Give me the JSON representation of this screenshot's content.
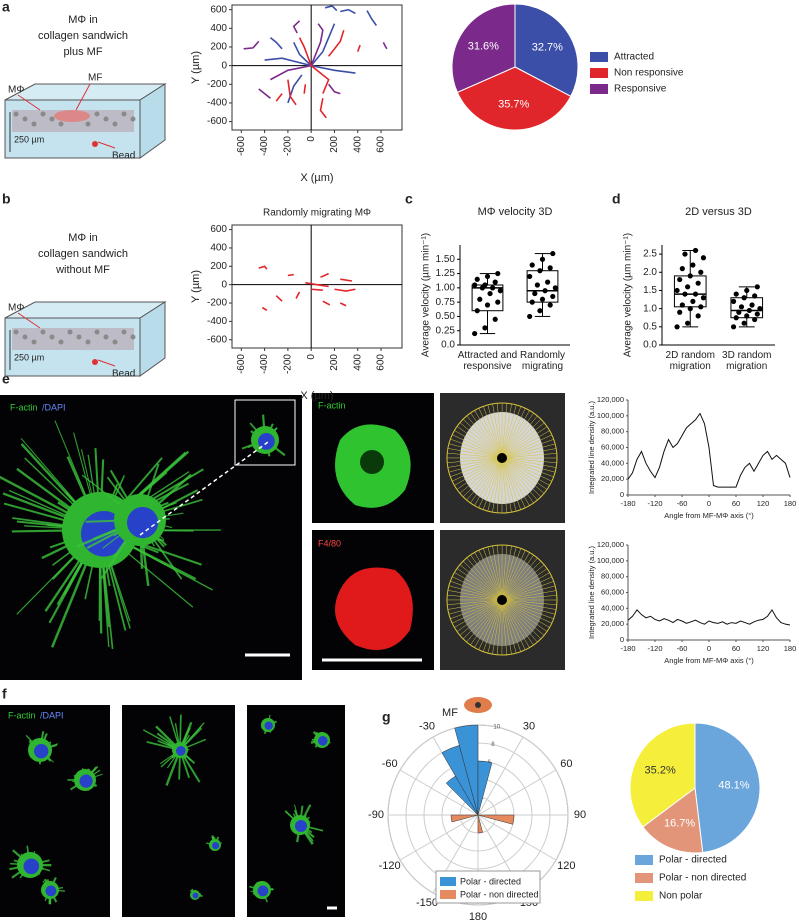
{
  "panel_letters": [
    "a",
    "b",
    "c",
    "d",
    "e",
    "f",
    "g"
  ],
  "schematics": [
    {
      "title": [
        "MΦ in",
        "collagen sandwich",
        "plus MF"
      ],
      "mf": "MF",
      "mphi": "MΦ",
      "depth": "250 µm",
      "bead": "Bead"
    },
    {
      "title": [
        "MΦ in",
        "collagen sandwich",
        "without MF"
      ],
      "mphi": "MΦ",
      "depth": "250 µm",
      "bead": "Bead"
    }
  ],
  "images": {
    "e_main": [
      "F-actin",
      "/DAPI"
    ],
    "e_top": "F-actin",
    "e_bottom": "F4/80",
    "f": [
      "F-actin",
      "/DAPI"
    ]
  },
  "chart_data": [
    {
      "type": "trajectory",
      "x_label": "X (µm)",
      "y_label": "Y (µm)",
      "xlim": [
        -680,
        780
      ],
      "ylim": [
        -690,
        650
      ],
      "xticks": [
        -600,
        -400,
        -200,
        0,
        200,
        400,
        600
      ],
      "yticks": [
        -600,
        -400,
        -200,
        0,
        200,
        400,
        600
      ],
      "tracks": [
        {
          "color": "#3b4fa8",
          "x": [
            0,
            100,
            150,
            200
          ],
          "y": [
            0,
            150,
            300,
            450
          ]
        },
        {
          "color": "#3b4fa8",
          "x": [
            0,
            -100,
            -150
          ],
          "y": [
            0,
            120,
            250
          ]
        },
        {
          "color": "#3b4fa8",
          "x": [
            250,
            320,
            380
          ],
          "y": [
            580,
            600,
            560
          ]
        },
        {
          "color": "#3b4fa8",
          "x": [
            120,
            180,
            220
          ],
          "y": [
            620,
            640,
            590
          ]
        },
        {
          "color": "#3b4fa8",
          "x": [
            480,
            520,
            560
          ],
          "y": [
            590,
            500,
            430
          ]
        },
        {
          "color": "#3b4fa8",
          "x": [
            -350,
            -300,
            -250
          ],
          "y": [
            300,
            250,
            180
          ]
        },
        {
          "color": "#3b4fa8",
          "x": [
            0,
            -250,
            -400
          ],
          "y": [
            0,
            80,
            60
          ]
        },
        {
          "color": "#3b4fa8",
          "x": [
            0,
            200,
            380
          ],
          "y": [
            0,
            -50,
            -80
          ]
        },
        {
          "color": "#3b4fa8",
          "x": [
            -80,
            -150,
            -200
          ],
          "y": [
            -100,
            -220,
            -400
          ]
        },
        {
          "color": "#7b2a8c",
          "x": [
            0,
            80,
            100,
            60
          ],
          "y": [
            0,
            250,
            380,
            450
          ]
        },
        {
          "color": "#7b2a8c",
          "x": [
            -580,
            -500,
            -450
          ],
          "y": [
            180,
            190,
            260
          ]
        },
        {
          "color": "#7b2a8c",
          "x": [
            -120,
            -150,
            -100
          ],
          "y": [
            350,
            420,
            480
          ]
        },
        {
          "color": "#7b2a8c",
          "x": [
            620,
            640,
            650
          ],
          "y": [
            250,
            200,
            180
          ]
        },
        {
          "color": "#7b2a8c",
          "x": [
            0,
            -200,
            -350
          ],
          "y": [
            0,
            -50,
            -150
          ]
        },
        {
          "color": "#7b2a8c",
          "x": [
            150,
            200,
            250
          ],
          "y": [
            -200,
            -280,
            -300
          ]
        },
        {
          "color": "#7b2a8c",
          "x": [
            -450,
            -400,
            -350
          ],
          "y": [
            -250,
            -300,
            -350
          ]
        },
        {
          "color": "#e0262a",
          "x": [
            0,
            -60,
            -100
          ],
          "y": [
            0,
            200,
            300
          ]
        },
        {
          "color": "#e0262a",
          "x": [
            150,
            250,
            280
          ],
          "y": [
            100,
            260,
            380
          ]
        },
        {
          "color": "#e0262a",
          "x": [
            400,
            420
          ],
          "y": [
            150,
            220
          ]
        },
        {
          "color": "#e0262a",
          "x": [
            0,
            150,
            100
          ],
          "y": [
            0,
            -150,
            -300
          ]
        },
        {
          "color": "#e0262a",
          "x": [
            -200,
            -180,
            -130
          ],
          "y": [
            -150,
            -330,
            -420
          ]
        },
        {
          "color": "#e0262a",
          "x": [
            100,
            80,
            130
          ],
          "y": [
            -350,
            -480,
            -560
          ]
        },
        {
          "color": "#e0262a",
          "x": [
            -50,
            -60
          ],
          "y": [
            -200,
            -300
          ]
        },
        {
          "color": "#e0262a",
          "x": [
            -250,
            -300
          ],
          "y": [
            -300,
            -380
          ]
        }
      ]
    },
    {
      "type": "pie",
      "categories": [
        "Attracted",
        "Non responsive",
        "Responsive"
      ],
      "values": [
        32.7,
        35.7,
        31.6
      ],
      "value_labels": [
        "32.7%",
        "35.7%",
        "31.6%"
      ],
      "colors": [
        "#3b4fa8",
        "#e0262a",
        "#7b2a8c"
      ]
    },
    {
      "type": "trajectory",
      "title": "Randomly migrating MΦ",
      "x_label": "X (µm)",
      "y_label": "Y (µm)",
      "xlim": [
        -680,
        780
      ],
      "ylim": [
        -690,
        650
      ],
      "xticks": [
        -600,
        -400,
        -200,
        0,
        200,
        400,
        600
      ],
      "yticks": [
        -600,
        -400,
        -200,
        0,
        200,
        400,
        600
      ],
      "tracks": [
        {
          "color": "#e0262a",
          "x": [
            -450,
            -400,
            -380
          ],
          "y": [
            180,
            200,
            170
          ]
        },
        {
          "color": "#e0262a",
          "x": [
            -200,
            -150
          ],
          "y": [
            100,
            110
          ]
        },
        {
          "color": "#e0262a",
          "x": [
            -100,
            -130
          ],
          "y": [
            -80,
            -150
          ]
        },
        {
          "color": "#e0262a",
          "x": [
            -300,
            -250
          ],
          "y": [
            -120,
            -180
          ]
        },
        {
          "color": "#e0262a",
          "x": [
            -50,
            50,
            150
          ],
          "y": [
            20,
            0,
            -20
          ]
        },
        {
          "color": "#e0262a",
          "x": [
            80,
            150
          ],
          "y": [
            80,
            120
          ]
        },
        {
          "color": "#e0262a",
          "x": [
            250,
            350
          ],
          "y": [
            60,
            40
          ]
        },
        {
          "color": "#e0262a",
          "x": [
            200,
            300,
            380
          ],
          "y": [
            -50,
            -70,
            -50
          ]
        },
        {
          "color": "#e0262a",
          "x": [
            100,
            160
          ],
          "y": [
            -180,
            -220
          ]
        },
        {
          "color": "#e0262a",
          "x": [
            -420,
            -380
          ],
          "y": [
            -250,
            -280
          ]
        },
        {
          "color": "#e0262a",
          "x": [
            250,
            300
          ],
          "y": [
            -200,
            -230
          ]
        },
        {
          "color": "#e0262a",
          "x": [
            0,
            100
          ],
          "y": [
            -50,
            -60
          ]
        }
      ]
    },
    {
      "type": "box",
      "title": "MΦ velocity 3D",
      "y_label": "Average velocity (µm min⁻¹)",
      "ylim": [
        0,
        1.75
      ],
      "yticks": [
        {
          "value": 0,
          "label": "0.0"
        },
        0.25,
        {
          "value": 0.5,
          "label": "0.50"
        },
        0.75,
        {
          "value": 1,
          "label": "1.00"
        },
        1.25,
        {
          "value": 1.5,
          "label": "1.50"
        }
      ],
      "categories": [
        "Attracted and responsive",
        "Randomly migrating"
      ],
      "boxes": [
        {
          "min": 0.2,
          "q1": 0.6,
          "median": 1.0,
          "q3": 1.05,
          "max": 1.25,
          "points": [
            0.2,
            0.3,
            0.45,
            0.6,
            0.7,
            0.75,
            0.8,
            0.9,
            0.95,
            1.0,
            1.0,
            1.05,
            1.05,
            1.1,
            1.15,
            1.2,
            1.25
          ]
        },
        {
          "min": 0.5,
          "q1": 0.75,
          "median": 0.95,
          "q3": 1.3,
          "max": 1.6,
          "points": [
            0.5,
            0.6,
            0.7,
            0.75,
            0.8,
            0.85,
            0.9,
            0.95,
            1.0,
            1.05,
            1.1,
            1.2,
            1.3,
            1.35,
            1.4,
            1.5,
            1.6
          ]
        }
      ]
    },
    {
      "type": "box",
      "title": "2D versus 3D",
      "y_label": "Average velocity (µm min⁻¹)",
      "ylim": [
        0,
        2.75
      ],
      "yticks": [
        {
          "value": 0,
          "label": "0.0"
        },
        0.5,
        {
          "value": 1,
          "label": "1.0"
        },
        1.5,
        {
          "value": 2,
          "label": "2.0"
        },
        2.5
      ],
      "categories": [
        "2D random migration",
        "3D random migration"
      ],
      "boxes": [
        {
          "min": 0.5,
          "q1": 1.05,
          "median": 1.4,
          "q3": 1.9,
          "max": 2.6,
          "points": [
            0.5,
            0.6,
            0.8,
            0.9,
            1.0,
            1.05,
            1.1,
            1.2,
            1.3,
            1.4,
            1.4,
            1.5,
            1.6,
            1.7,
            1.8,
            1.9,
            2.0,
            2.1,
            2.2,
            2.4,
            2.5,
            2.6
          ]
        },
        {
          "min": 0.5,
          "q1": 0.75,
          "median": 0.95,
          "q3": 1.3,
          "max": 1.6,
          "points": [
            0.5,
            0.6,
            0.7,
            0.75,
            0.8,
            0.85,
            0.9,
            0.95,
            1.0,
            1.05,
            1.1,
            1.2,
            1.3,
            1.35,
            1.4,
            1.5,
            1.6
          ]
        }
      ]
    },
    {
      "type": "line",
      "x_label": "Angle from MF-MΦ axis (°)",
      "y_label": "Integrated line density (a.u.)",
      "color": "#111",
      "xlim": [
        -180,
        180
      ],
      "xticks": [
        -180,
        -120,
        -60,
        0,
        60,
        120,
        180
      ],
      "ylim": [
        0,
        120000
      ],
      "yticks": [
        0,
        {
          "value": 20000,
          "label": "20,000"
        },
        {
          "value": 40000,
          "label": "40,000"
        },
        {
          "value": 60000,
          "label": "60,000"
        },
        {
          "value": 80000,
          "label": "80,000"
        },
        {
          "value": 100000,
          "label": "100,000"
        },
        {
          "value": 120000,
          "label": "120,000"
        }
      ],
      "x": [
        -180,
        -170,
        -160,
        -150,
        -140,
        -130,
        -120,
        -110,
        -100,
        -90,
        -80,
        -70,
        -60,
        -50,
        -40,
        -30,
        -20,
        -10,
        0,
        10,
        20,
        30,
        40,
        50,
        60,
        70,
        80,
        90,
        100,
        110,
        120,
        130,
        140,
        150,
        160,
        170,
        180
      ],
      "values": [
        20000,
        28000,
        45000,
        55000,
        40000,
        30000,
        22000,
        35000,
        55000,
        70000,
        60000,
        65000,
        75000,
        85000,
        90000,
        95000,
        103000,
        90000,
        60000,
        12000,
        10000,
        10000,
        10000,
        10000,
        10000,
        25000,
        35000,
        40000,
        30000,
        40000,
        50000,
        55000,
        45000,
        50000,
        45000,
        40000,
        22000
      ]
    },
    {
      "type": "line",
      "x_label": "Angle from MF-MΦ axis (°)",
      "y_label": "Integrated line density (a.u.)",
      "color": "#111",
      "xlim": [
        -180,
        180
      ],
      "xticks": [
        -180,
        -120,
        -60,
        0,
        60,
        120,
        180
      ],
      "ylim": [
        0,
        120000
      ],
      "yticks": [
        0,
        {
          "value": 20000,
          "label": "20,000"
        },
        {
          "value": 40000,
          "label": "40,000"
        },
        {
          "value": 60000,
          "label": "60,000"
        },
        {
          "value": 80000,
          "label": "80,000"
        },
        {
          "value": 100000,
          "label": "100,000"
        },
        {
          "value": 120000,
          "label": "120,000"
        }
      ],
      "x": [
        -180,
        -170,
        -160,
        -150,
        -140,
        -130,
        -120,
        -110,
        -100,
        -90,
        -80,
        -70,
        -60,
        -50,
        -40,
        -30,
        -20,
        -10,
        0,
        10,
        20,
        30,
        40,
        50,
        60,
        70,
        80,
        90,
        100,
        110,
        120,
        130,
        140,
        150,
        160,
        170,
        180
      ],
      "values": [
        25000,
        30000,
        38000,
        32000,
        28000,
        30000,
        26000,
        24000,
        27000,
        25000,
        22000,
        26000,
        24000,
        21000,
        23000,
        25000,
        22000,
        20000,
        24000,
        22000,
        21000,
        23000,
        20000,
        22000,
        21000,
        24000,
        22000,
        20000,
        23000,
        25000,
        26000,
        30000,
        38000,
        28000,
        22000,
        20000,
        19000
      ]
    },
    {
      "type": "rose",
      "top_label": "MF",
      "rlim": [
        0,
        10
      ],
      "rticks": [
        2,
        4,
        6,
        8,
        10
      ],
      "bin_width": 15,
      "angle_ticks": [
        -150,
        -120,
        -90,
        -60,
        -30,
        30,
        60,
        90,
        120,
        150,
        180
      ],
      "series": [
        {
          "name": "Polar - directed",
          "color": "#3a93d6",
          "angles": [
            -37.5,
            -22.5,
            -7.5,
            7.5
          ],
          "values": [
            5,
            8,
            10,
            6
          ]
        },
        {
          "name": "Polar - non directed",
          "color": "#e58a5e",
          "angles": [
            -97.5,
            97.5,
            172.5
          ],
          "values": [
            3,
            4,
            2
          ]
        }
      ]
    },
    {
      "type": "pie",
      "categories": [
        "Polar - directed",
        "Polar - non directed",
        "Non polar"
      ],
      "values": [
        48.1,
        16.7,
        35.2
      ],
      "value_labels": [
        "48.1%",
        "16.7%",
        "35.2%"
      ],
      "colors": [
        "#6aa6db",
        "#e3957a",
        "#f5ee3a"
      ]
    }
  ]
}
